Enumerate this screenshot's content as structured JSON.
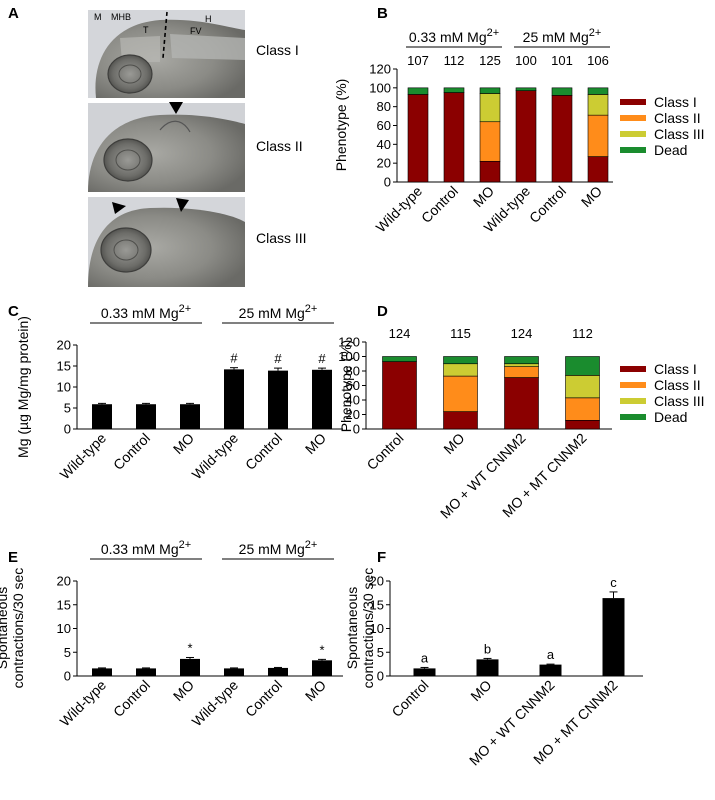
{
  "panels": {
    "A": "A",
    "B": "B",
    "C": "C",
    "D": "D",
    "E": "E",
    "F": "F"
  },
  "photos": {
    "class1": "Class I",
    "class2": "Class II",
    "class3": "Class III",
    "labels": {
      "m": "M",
      "mhb": "MHB",
      "h": "H",
      "t": "T",
      "fv": "FV"
    }
  },
  "colors": {
    "class1": "#8b0000",
    "class2": "#ff8c1a",
    "class3": "#cccc33",
    "dead": "#1a8c2e",
    "bar": "#000000"
  },
  "chart_data": [
    {
      "id": "B",
      "type": "bar",
      "stacked": true,
      "ylabel": "Phenotype (%)",
      "ylim": [
        0,
        120
      ],
      "yticks": [
        0,
        20,
        40,
        60,
        80,
        100,
        120
      ],
      "categories": [
        "Wild-type",
        "Control",
        "MO",
        "Wild-type",
        "Control",
        "MO"
      ],
      "groups": [
        {
          "label_main": "0.33 mM Mg",
          "label_sup": "2+"
        },
        {
          "label_main": "25 mM Mg",
          "label_sup": "2+"
        }
      ],
      "n": [
        "107",
        "112",
        "125",
        "100",
        "101",
        "106"
      ],
      "series": [
        {
          "name": "Class I",
          "values": [
            93,
            95,
            22,
            97,
            92,
            27
          ]
        },
        {
          "name": "Class II",
          "values": [
            0,
            0,
            42,
            0,
            0,
            44
          ]
        },
        {
          "name": "Class III",
          "values": [
            0,
            0,
            30,
            0,
            0,
            22
          ]
        },
        {
          "name": "Dead",
          "values": [
            7,
            5,
            6,
            3,
            8,
            7
          ]
        }
      ],
      "legend": "right"
    },
    {
      "id": "C",
      "type": "bar",
      "ylabel": "Mg (µg Mg/mg protein)",
      "ylim": [
        0,
        20
      ],
      "yticks": [
        0,
        5,
        10,
        15,
        20
      ],
      "categories": [
        "Wild-type",
        "Control",
        "MO",
        "Wild-type",
        "Control",
        "MO"
      ],
      "groups": [
        {
          "label_main": "0.33 mM Mg",
          "label_sup": "2+"
        },
        {
          "label_main": "25 mM Mg",
          "label_sup": "2+"
        }
      ],
      "values": [
        5.9,
        5.9,
        5.9,
        14.2,
        13.9,
        14.1
      ],
      "errors": [
        0.2,
        0.2,
        0.2,
        0.4,
        0.6,
        0.4
      ],
      "annotations": [
        "",
        "",
        "",
        "#",
        "#",
        "#"
      ]
    },
    {
      "id": "D",
      "type": "bar",
      "stacked": true,
      "ylabel": "Phenotype (%)",
      "ylim": [
        0,
        120
      ],
      "yticks": [
        0,
        20,
        40,
        60,
        80,
        100,
        120
      ],
      "categories": [
        "Control",
        "MO",
        "MO + WT CNNM2",
        "MO + MT CNNM2"
      ],
      "n": [
        "124",
        "115",
        "124",
        "112"
      ],
      "series": [
        {
          "name": "Class I",
          "values": [
            93,
            24,
            71,
            12
          ]
        },
        {
          "name": "Class II",
          "values": [
            0,
            49,
            15,
            31
          ]
        },
        {
          "name": "Class III",
          "values": [
            0,
            17,
            4,
            31
          ]
        },
        {
          "name": "Dead",
          "values": [
            7,
            10,
            10,
            26
          ]
        }
      ],
      "legend": "right"
    },
    {
      "id": "E",
      "type": "bar",
      "ylabel": "Spontaneous\ncontractions/30 sec",
      "ylim": [
        0,
        20
      ],
      "yticks": [
        0,
        5,
        10,
        15,
        20
      ],
      "categories": [
        "Wild-type",
        "Control",
        "MO",
        "Wild-type",
        "Control",
        "MO"
      ],
      "groups": [
        {
          "label_main": "0.33 mM Mg",
          "label_sup": "2+"
        },
        {
          "label_main": "25 mM Mg",
          "label_sup": "2+"
        }
      ],
      "values": [
        1.6,
        1.6,
        3.6,
        1.6,
        1.7,
        3.3
      ],
      "errors": [
        0.1,
        0.1,
        0.3,
        0.1,
        0.1,
        0.2
      ],
      "annotations": [
        "",
        "",
        "*",
        "",
        "",
        "*"
      ]
    },
    {
      "id": "F",
      "type": "bar",
      "ylabel": "Spontaneous\ncontractions/30 sec",
      "ylim": [
        0,
        20
      ],
      "yticks": [
        0,
        5,
        10,
        15,
        20
      ],
      "categories": [
        "Control",
        "MO",
        "MO + WT CNNM2",
        "MO + MT CNNM2"
      ],
      "values": [
        1.6,
        3.5,
        2.4,
        16.4
      ],
      "errors": [
        0.2,
        0.2,
        0.1,
        1.3
      ],
      "annotations": [
        "a",
        "b",
        "a",
        "c"
      ]
    }
  ]
}
